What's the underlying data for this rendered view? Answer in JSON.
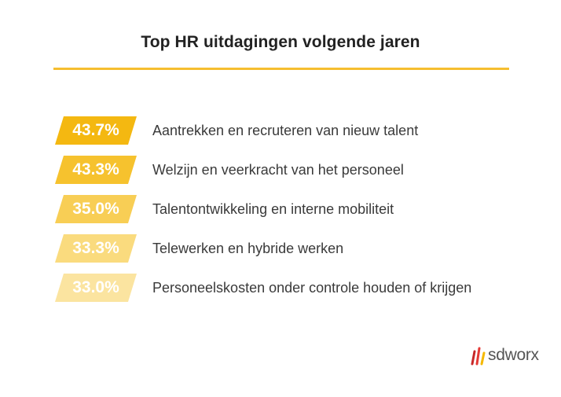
{
  "title": "Top HR uitdagingen volgende jaren",
  "colors": {
    "rule": "#F6BE2F",
    "bars": [
      "#F4B811",
      "#F6C22E",
      "#F8CE55",
      "#FADB7E",
      "#FBE4A0"
    ],
    "logo_slashes": [
      "#C62828",
      "#E53935",
      "#F5B800"
    ]
  },
  "chart_data": {
    "type": "bar",
    "title": "Top HR uitdagingen volgende jaren",
    "categories": [
      "Aantrekken en recruteren van nieuw talent",
      "Welzijn en veerkracht van het personeel",
      "Talentontwikkeling en interne mobiliteit",
      "Telewerken en hybride werken",
      "Personeelskosten onder controle houden of krijgen"
    ],
    "values": [
      43.7,
      43.3,
      35.0,
      33.3,
      33.0
    ],
    "value_labels": [
      "43.7%",
      "43.3%",
      "35.0%",
      "33.3%",
      "33.0%"
    ],
    "unit": "%"
  },
  "logo": {
    "text": "sdworx",
    "icon": "sdworx-slashes-icon"
  }
}
